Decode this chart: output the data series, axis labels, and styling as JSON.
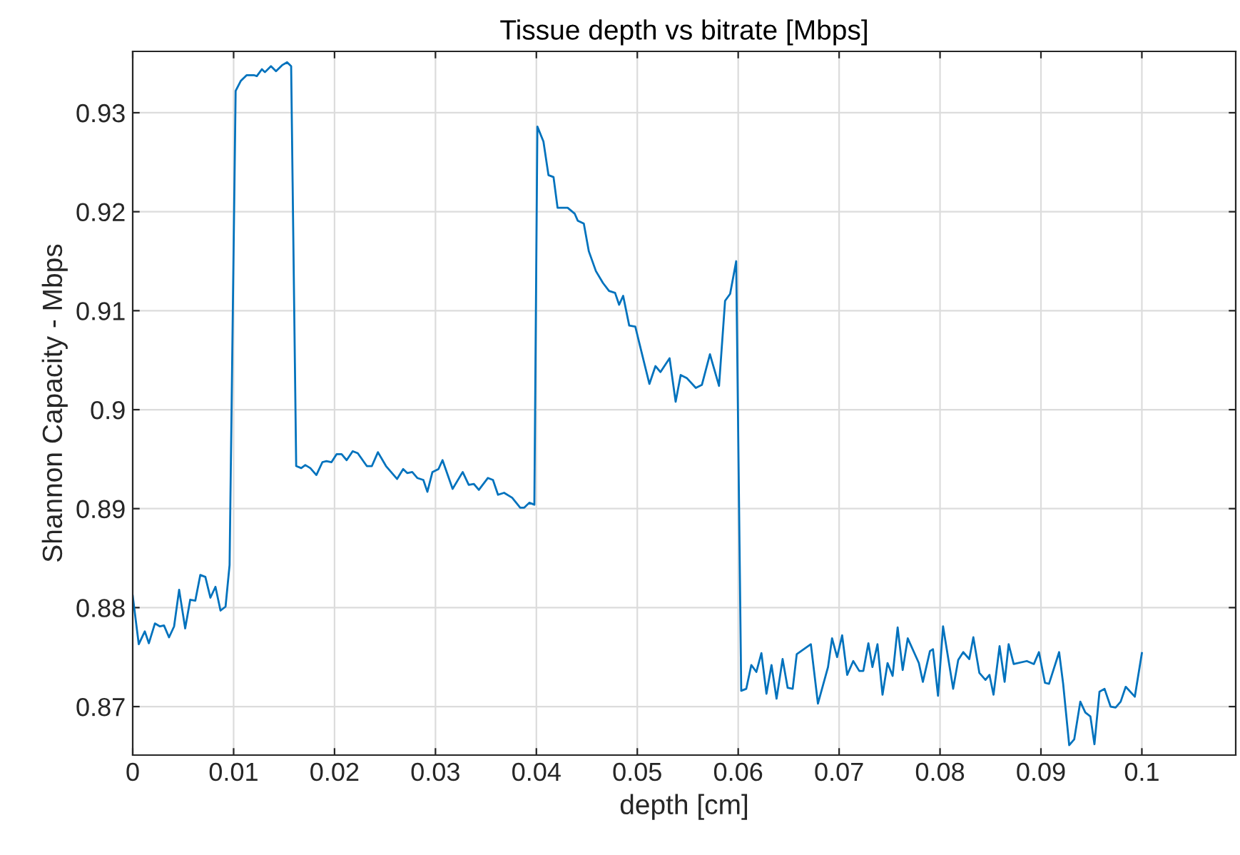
{
  "chart_data": {
    "type": "line",
    "title": "Tissue depth vs bitrate [Mbps]",
    "xlabel": "depth [cm]",
    "ylabel": "Shannon Capacity - Mbps",
    "xlim": [
      0,
      0.1093
    ],
    "ylim": [
      0.8651,
      0.9362
    ],
    "xticks": [
      0,
      0.01,
      0.02,
      0.03,
      0.04,
      0.05,
      0.06,
      0.07,
      0.08,
      0.09,
      0.1
    ],
    "yticks": [
      0.87,
      0.88,
      0.89,
      0.9,
      0.91,
      0.92,
      0.93
    ],
    "grid": true,
    "marker": "none",
    "line_style": "solid",
    "series": [
      {
        "color": "#0072bd",
        "x": [
          0,
          0.0006,
          0.0012,
          0.0016,
          0.0022,
          0.0027,
          0.0031,
          0.0036,
          0.0041,
          0.0046,
          0.0052,
          0.0057,
          0.0062,
          0.0067,
          0.0072,
          0.0077,
          0.0082,
          0.0087,
          0.0092,
          0.0096,
          0.0102,
          0.0107,
          0.0113,
          0.012,
          0.0123,
          0.0128,
          0.0131,
          0.0137,
          0.0142,
          0.0148,
          0.0153,
          0.0157,
          0.0162,
          0.0167,
          0.0171,
          0.0176,
          0.0182,
          0.0188,
          0.0192,
          0.0197,
          0.0202,
          0.0207,
          0.0212,
          0.0218,
          0.0223,
          0.0232,
          0.0237,
          0.0243,
          0.0251,
          0.0262,
          0.0268,
          0.0272,
          0.0277,
          0.0282,
          0.0288,
          0.0292,
          0.0297,
          0.0303,
          0.0307,
          0.0317,
          0.0327,
          0.0333,
          0.0338,
          0.0343,
          0.0352,
          0.0357,
          0.0362,
          0.0368,
          0.0376,
          0.0384,
          0.0388,
          0.0393,
          0.0398,
          0.0401,
          0.0407,
          0.0412,
          0.0417,
          0.0421,
          0.0431,
          0.0438,
          0.0441,
          0.0447,
          0.0452,
          0.0459,
          0.0466,
          0.0472,
          0.0478,
          0.0482,
          0.0486,
          0.0492,
          0.0498,
          0.0504,
          0.0512,
          0.0518,
          0.0523,
          0.0532,
          0.0538,
          0.0543,
          0.0549,
          0.0558,
          0.0564,
          0.0572,
          0.0581,
          0.0587,
          0.0592,
          0.0598,
          0.0603,
          0.0608,
          0.0613,
          0.0618,
          0.0623,
          0.0628,
          0.0633,
          0.0638,
          0.0644,
          0.0649,
          0.0654,
          0.0658,
          0.0672,
          0.0679,
          0.0689,
          0.0693,
          0.0698,
          0.0703,
          0.0708,
          0.0714,
          0.072,
          0.0724,
          0.0729,
          0.0733,
          0.0738,
          0.0743,
          0.0748,
          0.0753,
          0.0758,
          0.0763,
          0.0768,
          0.0779,
          0.0783,
          0.079,
          0.0793,
          0.0798,
          0.0803,
          0.0813,
          0.0818,
          0.0823,
          0.0829,
          0.0833,
          0.0839,
          0.0845,
          0.0849,
          0.0853,
          0.0859,
          0.0864,
          0.0868,
          0.0873,
          0.0886,
          0.0893,
          0.0898,
          0.0904,
          0.0908,
          0.0918,
          0.0922,
          0.0928,
          0.0933,
          0.0939,
          0.0944,
          0.0949,
          0.0953,
          0.0958,
          0.0963,
          0.0969,
          0.0974,
          0.0979,
          0.0984,
          0.0993,
          0.1
        ],
        "values": [
          0.8812,
          0.8763,
          0.8776,
          0.8764,
          0.8784,
          0.8781,
          0.8782,
          0.877,
          0.8781,
          0.8818,
          0.8779,
          0.8808,
          0.8807,
          0.8833,
          0.8831,
          0.881,
          0.8821,
          0.8797,
          0.8801,
          0.8843,
          0.9322,
          0.9332,
          0.9338,
          0.9338,
          0.9337,
          0.9344,
          0.9341,
          0.9347,
          0.9342,
          0.9348,
          0.9351,
          0.9347,
          0.8943,
          0.8941,
          0.8944,
          0.8941,
          0.8934,
          0.8947,
          0.8948,
          0.8947,
          0.8955,
          0.8955,
          0.8949,
          0.8958,
          0.8956,
          0.8943,
          0.8943,
          0.8957,
          0.8943,
          0.893,
          0.894,
          0.8936,
          0.8937,
          0.8931,
          0.8929,
          0.8917,
          0.8937,
          0.894,
          0.8949,
          0.892,
          0.8937,
          0.8924,
          0.8925,
          0.8919,
          0.8931,
          0.8929,
          0.8914,
          0.8916,
          0.8911,
          0.8901,
          0.8901,
          0.8906,
          0.8904,
          0.9286,
          0.9271,
          0.9237,
          0.9235,
          0.9204,
          0.9204,
          0.9198,
          0.9191,
          0.9188,
          0.916,
          0.914,
          0.9128,
          0.912,
          0.9118,
          0.9106,
          0.9115,
          0.9085,
          0.9084,
          0.9059,
          0.9026,
          0.9044,
          0.9038,
          0.9052,
          0.9008,
          0.9035,
          0.9032,
          0.9022,
          0.9025,
          0.9056,
          0.9024,
          0.911,
          0.9117,
          0.915,
          0.8716,
          0.8718,
          0.8742,
          0.8735,
          0.8754,
          0.8713,
          0.8742,
          0.8708,
          0.8748,
          0.8719,
          0.8718,
          0.8753,
          0.8763,
          0.8703,
          0.874,
          0.8769,
          0.875,
          0.8772,
          0.8732,
          0.8746,
          0.8736,
          0.8736,
          0.8764,
          0.874,
          0.8763,
          0.8712,
          0.8744,
          0.8731,
          0.878,
          0.8737,
          0.8769,
          0.8744,
          0.8725,
          0.8756,
          0.8758,
          0.8711,
          0.8781,
          0.8718,
          0.8747,
          0.8755,
          0.8748,
          0.877,
          0.8734,
          0.8727,
          0.8732,
          0.8712,
          0.8761,
          0.8725,
          0.8763,
          0.8743,
          0.8746,
          0.8743,
          0.8755,
          0.8724,
          0.8723,
          0.8755,
          0.8723,
          0.8661,
          0.8667,
          0.8705,
          0.8694,
          0.869,
          0.8662,
          0.8715,
          0.8718,
          0.87,
          0.8699,
          0.8705,
          0.872,
          0.871,
          0.8754
        ]
      }
    ]
  }
}
